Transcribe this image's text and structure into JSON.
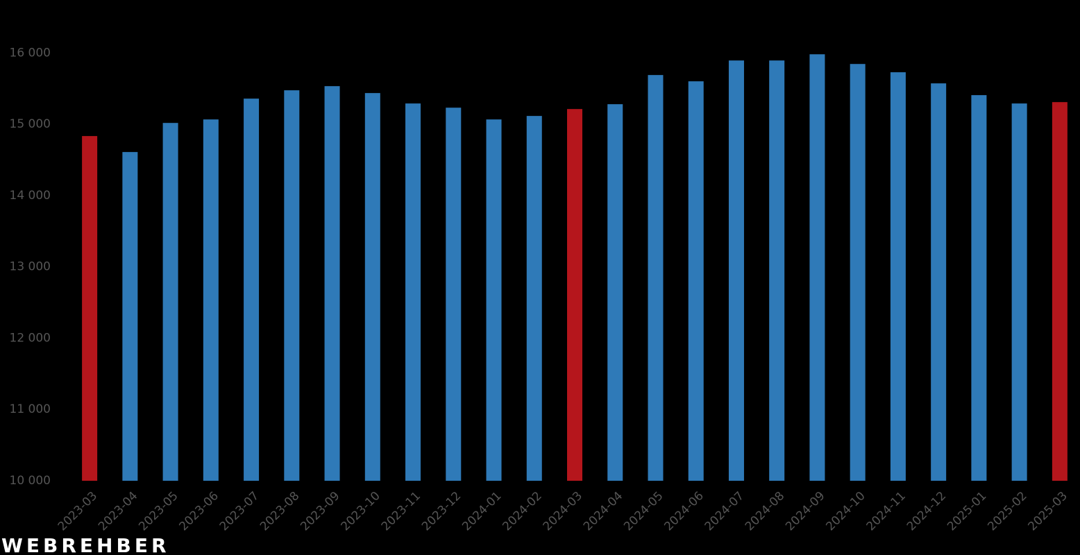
{
  "chart_data": {
    "type": "bar",
    "categories": [
      "2023-03",
      "2023-04",
      "2023-05",
      "2023-06",
      "2023-07",
      "2023-08",
      "2023-09",
      "2023-10",
      "2023-11",
      "2023-12",
      "2024-01",
      "2024-02",
      "2024-03",
      "2024-04",
      "2024-05",
      "2024-06",
      "2024-07",
      "2024-08",
      "2024-09",
      "2024-10",
      "2024-11",
      "2024-12",
      "2025-01",
      "2025-02",
      "2025-03"
    ],
    "values": [
      14835,
      14611,
      15019,
      15068,
      15360,
      15477,
      15535,
      15438,
      15292,
      15233,
      15068,
      15117,
      15214,
      15282,
      15691,
      15603,
      15895,
      15895,
      15982,
      15846,
      15730,
      15574,
      15409,
      15292,
      15311
    ],
    "colors": [
      "#b5161c",
      "#2f7ab8",
      "#2f7ab8",
      "#2f7ab8",
      "#2f7ab8",
      "#2f7ab8",
      "#2f7ab8",
      "#2f7ab8",
      "#2f7ab8",
      "#2f7ab8",
      "#2f7ab8",
      "#2f7ab8",
      "#b5161c",
      "#2f7ab8",
      "#2f7ab8",
      "#2f7ab8",
      "#2f7ab8",
      "#2f7ab8",
      "#2f7ab8",
      "#2f7ab8",
      "#2f7ab8",
      "#2f7ab8",
      "#2f7ab8",
      "#2f7ab8",
      "#b5161c"
    ],
    "ylim": [
      10000,
      16500
    ],
    "yticks": [
      {
        "value": 10000,
        "label": "10 000"
      },
      {
        "value": 11000,
        "label": "11 000"
      },
      {
        "value": 12000,
        "label": "12 000"
      },
      {
        "value": 13000,
        "label": "13 000"
      },
      {
        "value": 14000,
        "label": "14 000"
      },
      {
        "value": 15000,
        "label": "15 000"
      },
      {
        "value": 16000,
        "label": "16 000"
      }
    ],
    "grid": false,
    "watermark": "WEBREHBER"
  }
}
